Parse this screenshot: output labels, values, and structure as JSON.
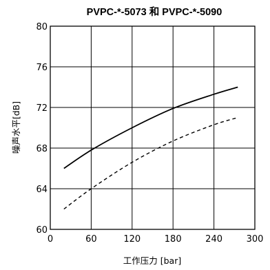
{
  "chart_data": {
    "type": "line",
    "title": "PVPC-*-5073 和 PVPC-*-5090",
    "xlabel": "工作压力 [bar]",
    "ylabel": "噪声水平[dB]",
    "xlim": [
      0,
      300
    ],
    "ylim": [
      60,
      80
    ],
    "xticks": [
      0,
      60,
      120,
      180,
      240,
      300
    ],
    "yticks": [
      60,
      64,
      68,
      72,
      76,
      80
    ],
    "grid": true,
    "series": [
      {
        "style": "solid",
        "x": [
          20,
          60,
          120,
          180,
          240,
          275
        ],
        "y": [
          66.0,
          67.8,
          70.0,
          71.9,
          73.3,
          74.0
        ]
      },
      {
        "style": "dashed",
        "x": [
          20,
          60,
          120,
          180,
          240,
          275
        ],
        "y": [
          62.0,
          64.0,
          66.6,
          68.7,
          70.3,
          71.0
        ]
      }
    ]
  }
}
